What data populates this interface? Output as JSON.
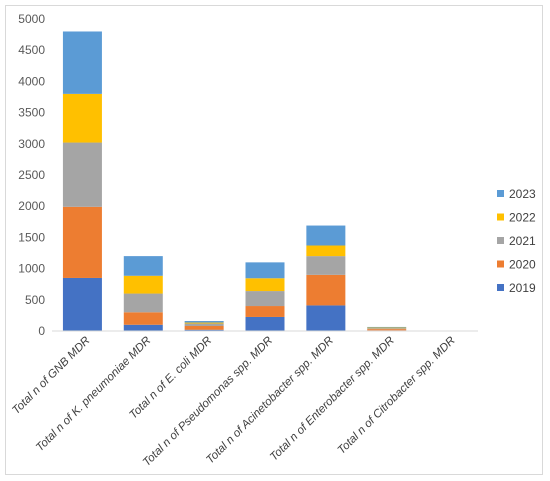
{
  "chart_data": {
    "type": "bar",
    "stacked": true,
    "categories": [
      "Total n of GNB MDR",
      "Total n of K. pneumoniae MDR",
      "Total n of E. coli MDR",
      "Total n of Pseudomonas spp. MDR",
      "Total n of Acinetobacter spp. MDR",
      "Total n of Enterobacter spp. MDR",
      "Total n of Citrobacter spp. MDR"
    ],
    "series": [
      {
        "name": "2019",
        "color": "#4472c4",
        "values": [
          850,
          100,
          20,
          225,
          410,
          10,
          0
        ]
      },
      {
        "name": "2020",
        "color": "#ed7d31",
        "values": [
          1140,
          200,
          60,
          175,
          490,
          20,
          0
        ]
      },
      {
        "name": "2021",
        "color": "#a5a5a5",
        "values": [
          1030,
          300,
          40,
          240,
          300,
          15,
          0
        ]
      },
      {
        "name": "2022",
        "color": "#ffc000",
        "values": [
          780,
          285,
          15,
          205,
          170,
          10,
          0
        ]
      },
      {
        "name": "2023",
        "color": "#5b9bd5",
        "values": [
          1000,
          315,
          25,
          255,
          320,
          10,
          0
        ]
      }
    ],
    "ylim": [
      0,
      5000
    ],
    "yticks": [
      "0",
      "500",
      "1000",
      "1500",
      "2000",
      "2500",
      "3000",
      "3500",
      "4000",
      "4500",
      "5000"
    ],
    "legend_position": "right",
    "grid": false
  }
}
